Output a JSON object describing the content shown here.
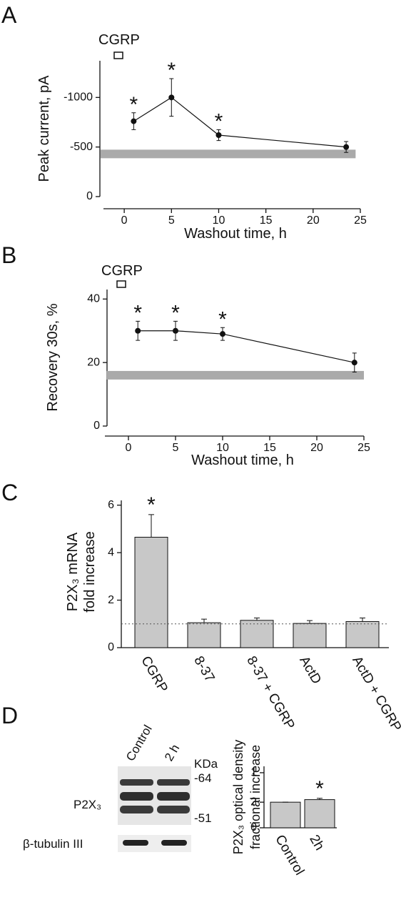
{
  "chart_data": [
    {
      "type": "line",
      "panel_label": "A",
      "treatment_label": "CGRP",
      "x": [
        1,
        5,
        10,
        23.5
      ],
      "values": [
        -760,
        -1000,
        -620,
        -500
      ],
      "errors": [
        85,
        190,
        55,
        55
      ],
      "significance": [
        "*",
        "*",
        "*",
        null
      ],
      "color": "#111111",
      "xlim": [
        -2.2,
        25
      ],
      "xticks": [
        0,
        5,
        10,
        15,
        20,
        25
      ],
      "ylim": [
        0,
        -1370
      ],
      "yticks": [
        0,
        -500,
        -1000
      ],
      "xlabel": "Washout time, h",
      "ylabel": "Peak current, pA",
      "band": {
        "value": -430,
        "x": [
          -2.5,
          24.5
        ],
        "color": "#aaaaaa"
      }
    },
    {
      "type": "line",
      "panel_label": "B",
      "treatment_label": "CGRP",
      "x": [
        1,
        5,
        10,
        24
      ],
      "values": [
        30,
        30,
        29,
        20
      ],
      "errors": [
        3,
        3,
        2,
        3
      ],
      "significance": [
        "*",
        "*",
        "*",
        null
      ],
      "color": "#111111",
      "xlim": [
        -2.5,
        25
      ],
      "xticks": [
        0,
        5,
        10,
        15,
        20,
        25
      ],
      "ylim": [
        0,
        43
      ],
      "yticks": [
        0,
        20,
        40
      ],
      "xlabel": "Washout time, h",
      "ylabel": "Recovery 30s, %",
      "band": {
        "value": 16,
        "x": [
          -2.3,
          25
        ],
        "color": "#aaaaaa"
      }
    },
    {
      "type": "bar",
      "panel_label": "C",
      "categories": [
        "CGRP",
        "8-37",
        "8-37 + CGRP",
        "ActD",
        "ActD + CGRP"
      ],
      "values": [
        4.65,
        1.05,
        1.15,
        1.02,
        1.1
      ],
      "errors": [
        0.95,
        0.15,
        0.1,
        0.12,
        0.15
      ],
      "significance": [
        "*",
        null,
        null,
        null,
        null
      ],
      "color": "#c8c8c8",
      "ylim": [
        0,
        6.2
      ],
      "yticks": [
        0,
        2,
        4,
        6
      ],
      "ylabel": [
        "P2X₃ mRNA",
        "fold increase"
      ],
      "reference_line": 1
    },
    {
      "type": "bar",
      "categories": [
        "Control",
        "2h"
      ],
      "values": [
        1,
        1.1
      ],
      "errors": [
        0,
        0.05
      ],
      "significance": [
        null,
        "*"
      ],
      "color": "#c8c8c8",
      "ylim": [
        0,
        2.4
      ],
      "yticks": [
        0,
        {
          "value": 1,
          "label": "2"
        },
        {
          "value": 2.15,
          "label": "1"
        }
      ],
      "ylabel": [
        "P2X₃ optical density",
        "fractional increase"
      ]
    }
  ],
  "blot": {
    "panel_label": "D",
    "lanes": [
      "Control",
      "2 h"
    ],
    "unit": "KDa",
    "markers": [
      "-64",
      "-51"
    ],
    "rows": [
      "P2X₃",
      "β-tubulin III"
    ]
  }
}
